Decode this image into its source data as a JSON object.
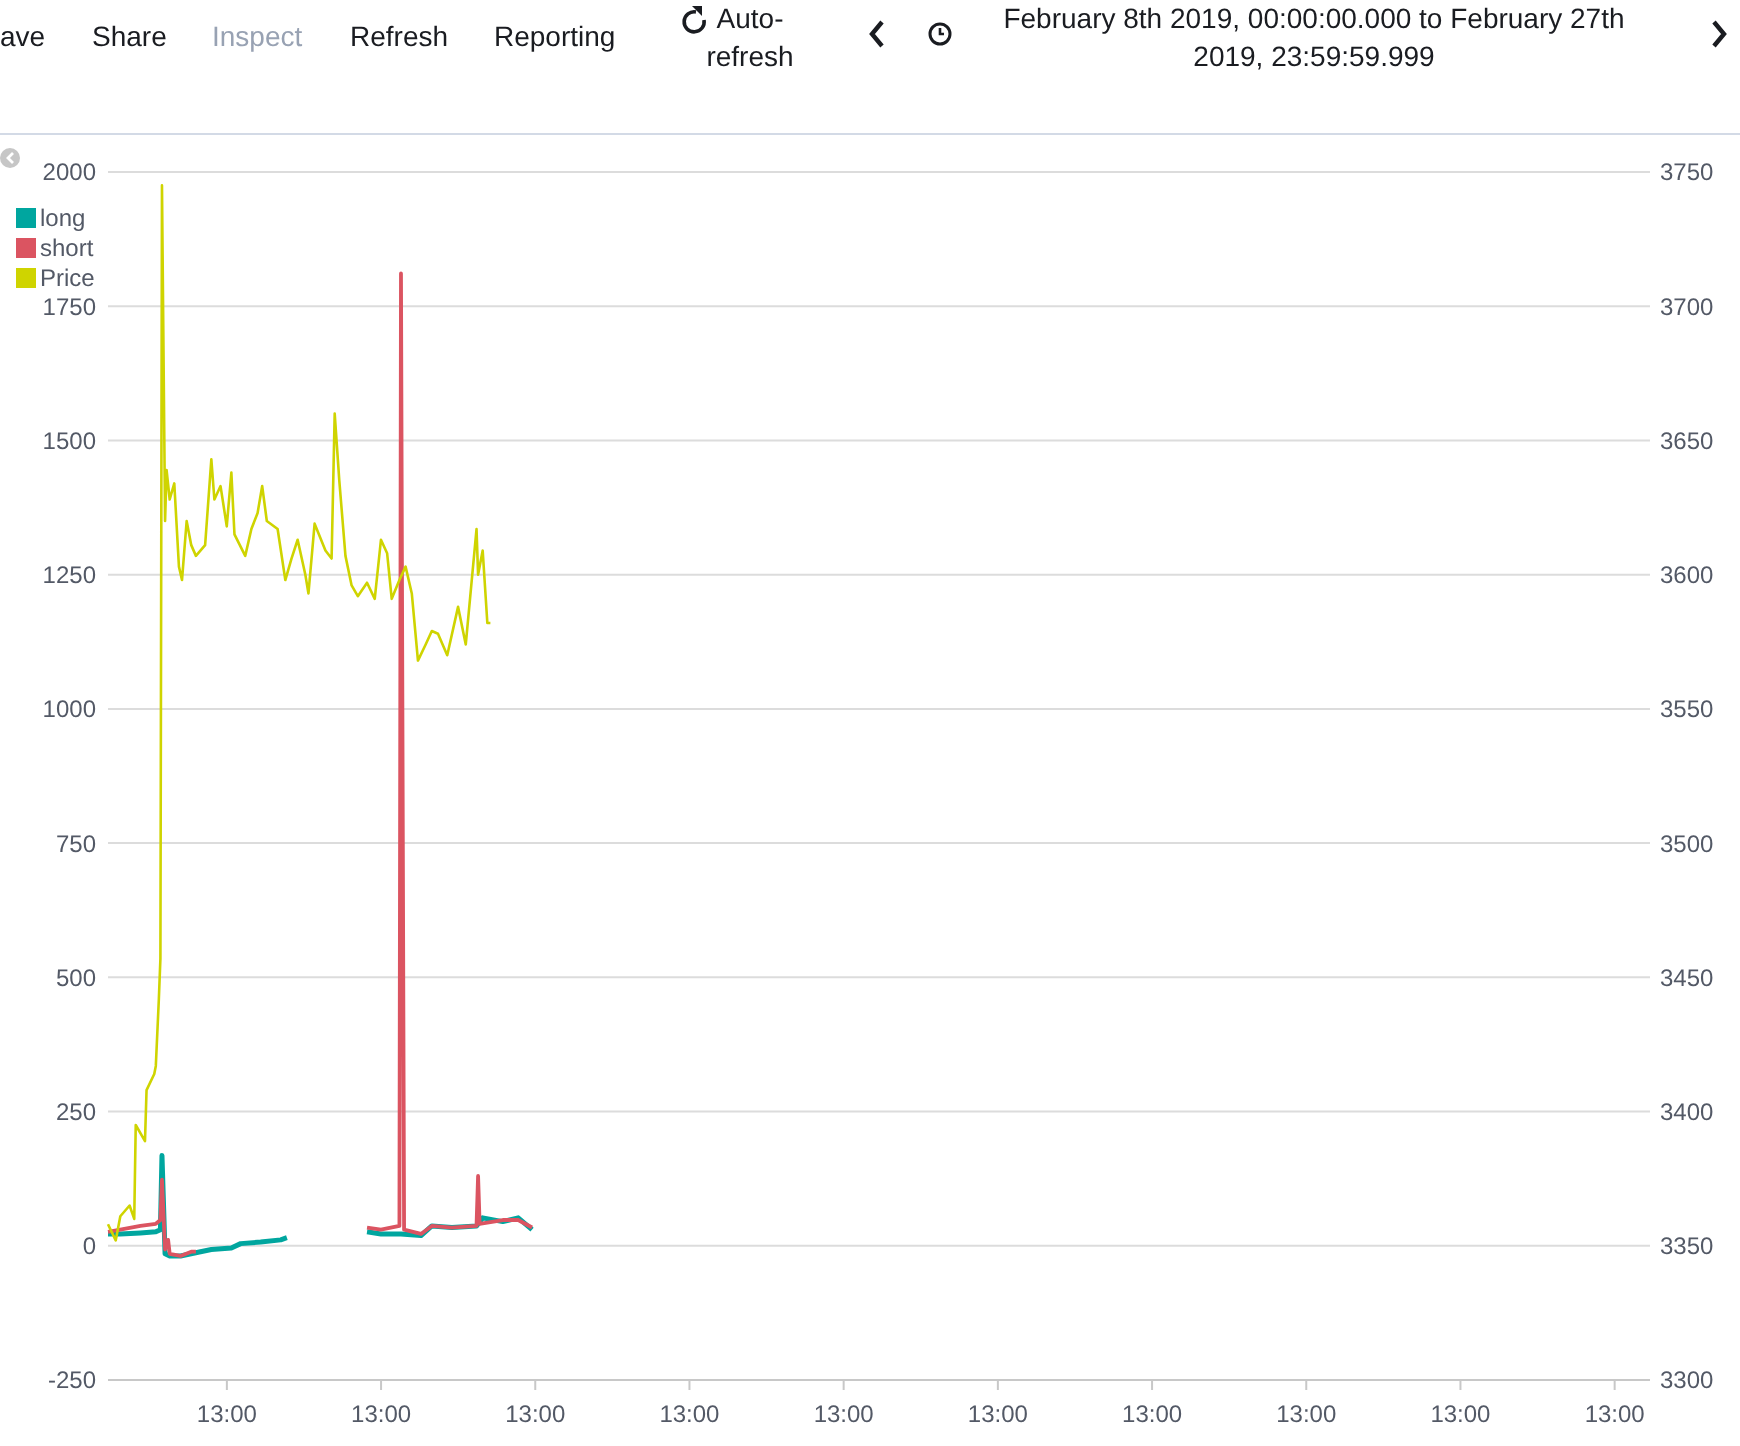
{
  "chart_data": {
    "type": "line",
    "annotations": [
      "ave",
      "Share",
      "Inspect",
      "Refresh",
      "Reporting",
      "Auto-refresh",
      "February 8th 2019, 00:00:00.000 to February 27th 2019, 23:59:59.999"
    ],
    "xlim": [
      "2019-02-08T00:00",
      "2019-02-28T00:00"
    ],
    "xticks": [
      {
        "value": "2019-02-09T13:00",
        "label": "13:00"
      },
      {
        "value": "2019-02-11T13:00",
        "label": "13:00"
      },
      {
        "value": "2019-02-13T13:00",
        "label": "13:00"
      },
      {
        "value": "2019-02-15T13:00",
        "label": "13:00"
      },
      {
        "value": "2019-02-17T13:00",
        "label": "13:00"
      },
      {
        "value": "2019-02-19T13:00",
        "label": "13:00"
      },
      {
        "value": "2019-02-21T13:00",
        "label": "13:00"
      },
      {
        "value": "2019-02-23T13:00",
        "label": "13:00"
      },
      {
        "value": "2019-02-25T13:00",
        "label": "13:00"
      },
      {
        "value": "2019-02-27T13:00",
        "label": "13:00"
      }
    ],
    "ylim": [
      -250,
      2000
    ],
    "yticks": [
      -250,
      0,
      250,
      500,
      750,
      1000,
      1250,
      1500,
      1750,
      2000
    ],
    "y2lim": [
      3300,
      3750
    ],
    "y2ticks": [
      3300,
      3350,
      3400,
      3450,
      3500,
      3550,
      3600,
      3650,
      3700,
      3750
    ],
    "grid": "y",
    "legend": "top left",
    "series": [
      {
        "name": "long",
        "color": "#00a69f",
        "x": [
          "2019-02-08T00:00",
          "2019-02-08T03:50",
          "2019-02-08T10:05",
          "2019-02-08T14:53",
          "2019-02-08T16:19",
          "2019-02-08T16:48",
          "2019-02-08T17:46",
          "2019-02-08T19:12",
          "2019-02-08T22:34",
          "2019-02-09T04:48",
          "2019-02-09T08:10",
          "2019-02-09T14:24",
          "2019-02-09T17:17",
          "2019-02-09T23:31",
          "2019-02-10T05:46",
          "2019-02-10T07:41",
          "2019-02-10T17:46",
          "2019-02-11T08:38",
          "2019-02-11T12:58",
          "2019-02-11T19:12",
          "2019-02-12T01:26",
          "2019-02-12T04:48",
          "2019-02-12T11:02",
          "2019-02-12T18:43",
          "2019-02-12T20:38",
          "2019-02-13T02:53",
          "2019-02-13T07:41",
          "2019-02-13T12:00"
        ],
        "values": [
          22,
          22,
          24,
          26,
          30,
          168,
          -15,
          -19,
          -19,
          -11,
          -7,
          -4,
          4,
          7,
          11,
          15,
          null,
          26,
          22,
          22,
          19,
          37,
          34,
          37,
          52,
          45,
          52,
          30
        ]
      },
      {
        "name": "short",
        "color": "#db5461",
        "x": [
          "2019-02-08T00:00",
          "2019-02-08T03:50",
          "2019-02-08T10:05",
          "2019-02-08T14:53",
          "2019-02-08T16:19",
          "2019-02-08T16:48",
          "2019-02-08T17:46",
          "2019-02-08T18:43",
          "2019-02-08T19:12",
          "2019-02-08T22:34",
          "2019-02-09T01:55",
          "2019-02-09T03:22",
          "2019-02-09T22:34",
          "2019-02-11T08:38",
          "2019-02-11T12:58",
          "2019-02-11T18:43",
          "2019-02-11T19:12",
          "2019-02-11T20:10",
          "2019-02-12T01:26",
          "2019-02-12T04:48",
          "2019-02-12T11:02",
          "2019-02-12T18:43",
          "2019-02-12T19:12",
          "2019-02-12T19:41",
          "2019-02-13T02:53",
          "2019-02-13T07:41",
          "2019-02-13T12:00"
        ],
        "values": [
          26,
          30,
          37,
          41,
          48,
          123,
          -7,
          11,
          -15,
          -19,
          -11,
          -11,
          null,
          34,
          30,
          37,
          1811,
          30,
          22,
          37,
          34,
          37,
          130,
          41,
          48,
          48,
          34
        ]
      },
      {
        "name": "Price",
        "color": "#cfd400",
        "axis": "y2",
        "x": [
          "2019-02-08T00:00",
          "2019-02-08T02:24",
          "2019-02-08T03:50",
          "2019-02-08T06:43",
          "2019-02-08T08:10",
          "2019-02-08T08:38",
          "2019-02-08T11:31",
          "2019-02-08T12:00",
          "2019-02-08T14:24",
          "2019-02-08T14:53",
          "2019-02-08T15:50",
          "2019-02-08T16:19",
          "2019-02-08T16:48",
          "2019-02-08T17:46",
          "2019-02-08T18:14",
          "2019-02-08T19:12",
          "2019-02-08T20:38",
          "2019-02-08T22:05",
          "2019-02-08T23:02",
          "2019-02-09T00:29",
          "2019-02-09T01:55",
          "2019-02-09T03:22",
          "2019-02-09T06:14",
          "2019-02-09T08:10",
          "2019-02-09T09:07",
          "2019-02-09T11:02",
          "2019-02-09T12:58",
          "2019-02-09T14:24",
          "2019-02-09T15:22",
          "2019-02-09T18:43",
          "2019-02-09T20:38",
          "2019-02-09T22:34",
          "2019-02-10T00:00",
          "2019-02-10T01:26",
          "2019-02-10T04:48",
          "2019-02-10T07:12",
          "2019-02-10T09:07",
          "2019-02-10T11:02",
          "2019-02-10T13:26",
          "2019-02-10T14:24",
          "2019-02-10T16:19",
          "2019-02-10T19:41",
          "2019-02-10T21:36",
          "2019-02-10T22:34",
          "2019-02-11T00:00",
          "2019-02-11T01:55",
          "2019-02-11T03:50",
          "2019-02-11T05:46",
          "2019-02-11T08:38",
          "2019-02-11T11:02",
          "2019-02-11T12:58",
          "2019-02-11T14:53",
          "2019-02-11T16:19",
          "2019-02-11T18:43",
          "2019-02-11T20:38",
          "2019-02-11T22:34",
          "2019-02-12T00:29",
          "2019-02-12T02:53",
          "2019-02-12T04:48",
          "2019-02-12T06:43",
          "2019-02-12T09:36",
          "2019-02-12T12:58",
          "2019-02-12T15:22",
          "2019-02-12T18:43",
          "2019-02-12T19:12",
          "2019-02-12T20:38",
          "2019-02-12T22:05",
          "2019-02-12T23:02"
        ],
        "values": [
          3358,
          3352,
          3361,
          3365,
          3360,
          3395,
          3389,
          3408,
          3414,
          3417,
          3442,
          3457,
          3745,
          3620,
          3639,
          3628,
          3634,
          3603,
          3598,
          3620,
          3611,
          3607,
          3611,
          3643,
          3628,
          3633,
          3618,
          3638,
          3615,
          3607,
          3617,
          3623,
          3633,
          3620,
          3617,
          3598,
          3606,
          3613,
          3600,
          3593,
          3619,
          3609,
          3606,
          3660,
          3635,
          3607,
          3596,
          3592,
          3597,
          3591,
          3613,
          3608,
          3591,
          3598,
          3603,
          3593,
          3568,
          3574,
          3579,
          3578,
          3570,
          3588,
          3574,
          3617,
          3600,
          3609,
          3582,
          3582
        ]
      }
    ]
  }
}
